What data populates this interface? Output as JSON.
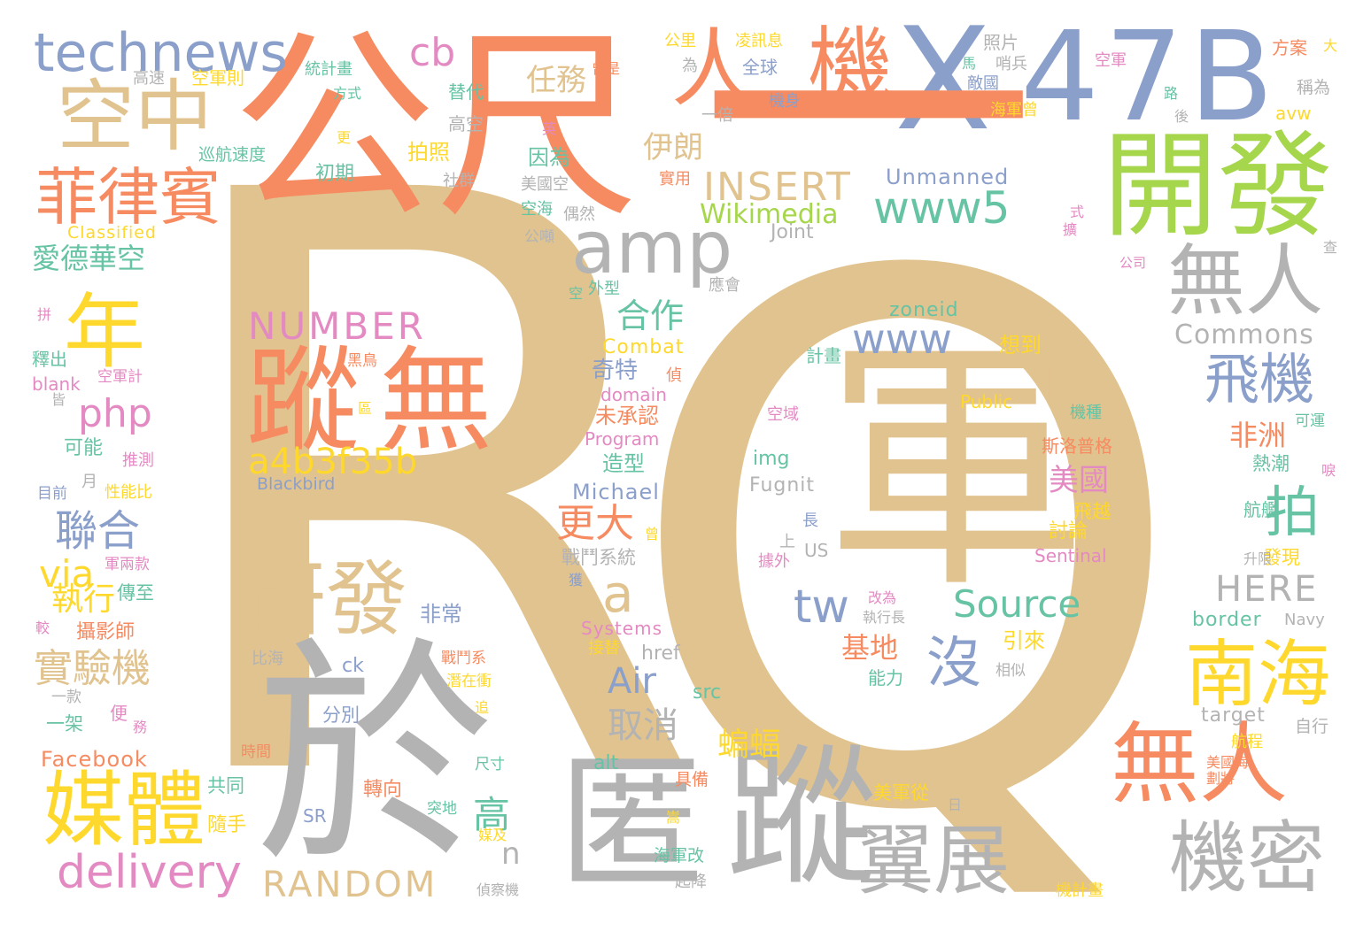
{
  "words": [
    {
      "text": "R",
      "color": "tan",
      "size": 1
    },
    {
      "text": "Q",
      "color": "tan",
      "size": 1
    },
    {
      "text": "軍",
      "color": "tan",
      "size": 1
    },
    {
      "text": "公尺",
      "color": "orange",
      "size": 1
    },
    {
      "text": "X",
      "color": "blue",
      "size": 1
    },
    {
      "text": "47B",
      "color": "blue",
      "size": 1
    },
    {
      "text": "一",
      "color": "orange",
      "size": 1
    },
    {
      "text": "開發",
      "color": "green",
      "size": 1
    },
    {
      "text": "於",
      "color": "gray",
      "size": 1
    },
    {
      "text": "匿",
      "color": "gray",
      "size": 1
    },
    {
      "text": "蹤",
      "color": "gray",
      "size": 1
    },
    {
      "text": "蹤",
      "color": "orange",
      "size": 1
    },
    {
      "text": "無",
      "color": "orange",
      "size": 1
    },
    {
      "text": "機",
      "color": "orange",
      "size": 1
    },
    {
      "text": "人",
      "color": "orange",
      "size": 1
    },
    {
      "text": "amp",
      "color": "gray",
      "size": 1
    },
    {
      "text": "空中",
      "color": "tan",
      "size": 1
    },
    {
      "text": "菲律賓",
      "color": "orange",
      "size": 1
    },
    {
      "text": "technews",
      "color": "blue",
      "size": 1
    },
    {
      "text": "研發",
      "color": "tan",
      "size": 1
    },
    {
      "text": "媒體",
      "color": "yellow",
      "size": 1
    },
    {
      "text": "無人",
      "color": "gray",
      "size": 1
    },
    {
      "text": "無人",
      "color": "orange",
      "size": 1
    },
    {
      "text": "翼展",
      "color": "gray",
      "size": 1
    },
    {
      "text": "機密",
      "color": "gray",
      "size": 1
    },
    {
      "text": "南海",
      "color": "yellow",
      "size": 1
    },
    {
      "text": "飛機",
      "color": "blue",
      "size": 1
    },
    {
      "text": "拍",
      "color": "teal",
      "size": 1
    },
    {
      "text": "年",
      "color": "yellow",
      "size": 1
    },
    {
      "text": "www5",
      "color": "teal",
      "size": 1
    },
    {
      "text": "www",
      "color": "blue",
      "size": 1
    },
    {
      "text": "INSERT",
      "color": "tan",
      "size": 1
    },
    {
      "text": "NUMBER",
      "color": "pink",
      "size": 1
    },
    {
      "text": "a4b3f35b",
      "color": "yellow",
      "size": 1
    },
    {
      "text": "php",
      "color": "pink",
      "size": 1
    },
    {
      "text": "tw",
      "color": "blue",
      "size": 1
    },
    {
      "text": "Source",
      "color": "teal",
      "size": 1
    },
    {
      "text": "沒",
      "color": "blue",
      "size": 1
    },
    {
      "text": "delivery",
      "color": "pink",
      "size": 1
    },
    {
      "text": "RANDOM",
      "color": "tan",
      "size": 1
    },
    {
      "text": "Commons",
      "color": "gray",
      "size": 1
    },
    {
      "text": "HERE",
      "color": "gray",
      "size": 1
    },
    {
      "text": "Wikimedia",
      "color": "green",
      "size": 1
    },
    {
      "text": "Unmanned",
      "color": "blue",
      "size": 1
    },
    {
      "text": "cb",
      "color": "pink",
      "size": 1
    },
    {
      "text": "任務",
      "color": "tan",
      "size": 1
    },
    {
      "text": "伊朗",
      "color": "tan",
      "size": 1
    },
    {
      "text": "合作",
      "color": "teal",
      "size": 1
    },
    {
      "text": "愛德華空",
      "color": "teal",
      "size": 1
    },
    {
      "text": "聯合",
      "color": "blue",
      "size": 1
    },
    {
      "text": "via",
      "color": "yellow",
      "size": 1
    },
    {
      "text": "執行",
      "color": "yellow",
      "size": 1
    },
    {
      "text": "實驗機",
      "color": "tan",
      "size": 1
    },
    {
      "text": "Facebook",
      "color": "orange",
      "size": 1
    },
    {
      "text": "a",
      "color": "tan",
      "size": 1
    },
    {
      "text": "更大",
      "color": "orange",
      "size": 1
    },
    {
      "text": "Air",
      "color": "blue",
      "size": 1
    },
    {
      "text": "取消",
      "color": "gray",
      "size": 1
    },
    {
      "text": "蝙蝠",
      "color": "yellow",
      "size": 1
    },
    {
      "text": "高",
      "color": "teal",
      "size": 1
    },
    {
      "text": "n",
      "color": "gray",
      "size": 1
    },
    {
      "text": "基地",
      "color": "orange",
      "size": 1
    },
    {
      "text": "非洲",
      "color": "orange",
      "size": 1
    },
    {
      "text": "美國",
      "color": "pink",
      "size": 1
    },
    {
      "text": "zoneid",
      "color": "teal",
      "size": 1
    },
    {
      "text": "Combat",
      "color": "yellow",
      "size": 1
    },
    {
      "text": "Michael",
      "color": "blue",
      "size": 1
    },
    {
      "text": "Fugnit",
      "color": "gray",
      "size": 1
    },
    {
      "text": "Blackbird",
      "color": "blue",
      "size": 1
    },
    {
      "text": "Program",
      "color": "pink",
      "size": 1
    },
    {
      "text": "Systems",
      "color": "pink",
      "size": 1
    },
    {
      "text": "Sentinal",
      "color": "pink",
      "size": 1
    },
    {
      "text": "border",
      "color": "teal",
      "size": 1
    },
    {
      "text": "Navy",
      "color": "gray",
      "size": 1
    },
    {
      "text": "target",
      "color": "gray",
      "size": 1
    },
    {
      "text": "Public",
      "color": "yellow",
      "size": 1
    },
    {
      "text": "Joint",
      "color": "gray",
      "size": 1
    },
    {
      "text": "Classified",
      "color": "yellow",
      "size": 1
    },
    {
      "text": "blank",
      "color": "pink",
      "size": 1
    },
    {
      "text": "domain",
      "color": "pink",
      "size": 1
    },
    {
      "text": "img",
      "color": "teal",
      "size": 1
    },
    {
      "text": "href",
      "color": "gray",
      "size": 1
    },
    {
      "text": "src",
      "color": "teal",
      "size": 1
    },
    {
      "text": "ck",
      "color": "blue",
      "size": 1
    },
    {
      "text": "alt",
      "color": "teal",
      "size": 1
    },
    {
      "text": "SR",
      "color": "blue",
      "size": 1
    },
    {
      "text": "US",
      "color": "gray",
      "size": 1
    },
    {
      "text": "avw",
      "color": "yellow",
      "size": 1
    },
    {
      "text": "照片",
      "color": "gray",
      "size": 1
    },
    {
      "text": "空軍則",
      "color": "yellow",
      "size": 1
    },
    {
      "text": "巡航速度",
      "color": "teal",
      "size": 1
    },
    {
      "text": "因為",
      "color": "teal",
      "size": 1
    },
    {
      "text": "拍照",
      "color": "yellow",
      "size": 1
    },
    {
      "text": "初期",
      "color": "teal",
      "size": 1
    },
    {
      "text": "全球",
      "color": "blue",
      "size": 1
    },
    {
      "text": "奇特",
      "color": "blue",
      "size": 1
    },
    {
      "text": "未承認",
      "color": "orange",
      "size": 1
    },
    {
      "text": "造型",
      "color": "teal",
      "size": 1
    },
    {
      "text": "戰鬥系統",
      "color": "gray",
      "size": 1
    },
    {
      "text": "非常",
      "color": "blue",
      "size": 1
    },
    {
      "text": "可能",
      "color": "teal",
      "size": 1
    },
    {
      "text": "攝影師",
      "color": "orange",
      "size": 1
    },
    {
      "text": "傳至",
      "color": "teal",
      "size": 1
    },
    {
      "text": "一架",
      "color": "teal",
      "size": 1
    },
    {
      "text": "共同",
      "color": "teal",
      "size": 1
    },
    {
      "text": "隨手",
      "color": "yellow",
      "size": 1
    },
    {
      "text": "分別",
      "color": "blue",
      "size": 1
    },
    {
      "text": "轉向",
      "color": "orange",
      "size": 1
    },
    {
      "text": "美軍從",
      "color": "yellow",
      "size": 1
    },
    {
      "text": "海軍改",
      "color": "teal",
      "size": 1
    },
    {
      "text": "起降",
      "color": "gray",
      "size": 1
    },
    {
      "text": "具備",
      "color": "orange",
      "size": 1
    },
    {
      "text": "引來",
      "color": "yellow",
      "size": 1
    },
    {
      "text": "能力",
      "color": "teal",
      "size": 1
    },
    {
      "text": "想到",
      "color": "yellow",
      "size": 1
    },
    {
      "text": "討論",
      "color": "yellow",
      "size": 1
    },
    {
      "text": "飛越",
      "color": "yellow",
      "size": 1
    },
    {
      "text": "斯洛普格",
      "color": "orange",
      "size": 1
    },
    {
      "text": "熱潮",
      "color": "teal",
      "size": 1
    },
    {
      "text": "航艦",
      "color": "teal",
      "size": 1
    },
    {
      "text": "發現",
      "color": "yellow",
      "size": 1
    },
    {
      "text": "升限",
      "color": "gray",
      "size": 1
    },
    {
      "text": "自行",
      "color": "gray",
      "size": 1
    },
    {
      "text": "航程",
      "color": "yellow",
      "size": 1
    },
    {
      "text": "機計畫",
      "color": "yellow",
      "size": 1
    },
    {
      "text": "替代",
      "color": "teal",
      "size": 1
    },
    {
      "text": "高空",
      "color": "gray",
      "size": 1
    },
    {
      "text": "社群",
      "color": "gray",
      "size": 1
    },
    {
      "text": "實用",
      "color": "orange",
      "size": 1
    },
    {
      "text": "方案",
      "color": "orange",
      "size": 1
    },
    {
      "text": "稱為",
      "color": "gray",
      "size": 1
    },
    {
      "text": "海軍曾",
      "color": "yellow",
      "size": 1
    },
    {
      "text": "機身",
      "color": "blue",
      "size": 1
    },
    {
      "text": "一倍",
      "color": "gray",
      "size": 1
    },
    {
      "text": "高速",
      "color": "gray",
      "size": 1
    },
    {
      "text": "統計畫",
      "color": "teal",
      "size": 1
    },
    {
      "text": "方式",
      "color": "teal",
      "size": 1
    },
    {
      "text": "公里",
      "color": "yellow",
      "size": 1
    },
    {
      "text": "為",
      "color": "gray",
      "size": 1
    },
    {
      "text": "曾是",
      "color": "orange",
      "size": 1
    },
    {
      "text": "凌訊息",
      "color": "yellow",
      "size": 1
    },
    {
      "text": "美國空",
      "color": "gray",
      "size": 1
    },
    {
      "text": "偶然",
      "color": "gray",
      "size": 1
    },
    {
      "text": "空海",
      "color": "teal",
      "size": 1
    },
    {
      "text": "公噸",
      "color": "gray",
      "size": 1
    },
    {
      "text": "外型",
      "color": "teal",
      "size": 1
    },
    {
      "text": "應會",
      "color": "gray",
      "size": 1
    },
    {
      "text": "空軍計",
      "color": "pink",
      "size": 1
    },
    {
      "text": "黑鳥",
      "color": "orange",
      "size": 1
    },
    {
      "text": "計畫",
      "color": "teal",
      "size": 1
    },
    {
      "text": "空域",
      "color": "pink",
      "size": 1
    },
    {
      "text": "機種",
      "color": "teal",
      "size": 1
    },
    {
      "text": "可運",
      "color": "teal",
      "size": 1
    },
    {
      "text": "釋出",
      "color": "teal",
      "size": 1
    },
    {
      "text": "推測",
      "color": "pink",
      "size": 1
    },
    {
      "text": "目前",
      "color": "blue",
      "size": 1
    },
    {
      "text": "性能比",
      "color": "yellow",
      "size": 1
    },
    {
      "text": "月",
      "color": "gray",
      "size": 1
    },
    {
      "text": "軍兩款",
      "color": "pink",
      "size": 1
    },
    {
      "text": "比海",
      "color": "gray",
      "size": 1
    },
    {
      "text": "一款",
      "color": "gray",
      "size": 1
    },
    {
      "text": "便",
      "color": "pink",
      "size": 1
    },
    {
      "text": "時間",
      "color": "orange",
      "size": 1
    },
    {
      "text": "戰鬥系",
      "color": "orange",
      "size": 1
    },
    {
      "text": "潛在衝",
      "color": "yellow",
      "size": 1
    },
    {
      "text": "接替",
      "color": "yellow",
      "size": 1
    },
    {
      "text": "尺寸",
      "color": "teal",
      "size": 1
    },
    {
      "text": "突地",
      "color": "teal",
      "size": 1
    },
    {
      "text": "執行長",
      "color": "gray",
      "size": 1
    },
    {
      "text": "改為",
      "color": "pink",
      "size": 1
    },
    {
      "text": "相似",
      "color": "gray",
      "size": 1
    },
    {
      "text": "偵察機",
      "color": "gray",
      "size": 1
    },
    {
      "text": "美國海",
      "color": "orange",
      "size": 1
    },
    {
      "text": "據外",
      "color": "pink",
      "size": 1
    },
    {
      "text": "公司",
      "color": "pink",
      "size": 1
    },
    {
      "text": "空軍",
      "color": "pink",
      "size": 1
    },
    {
      "text": "敵國",
      "color": "blue",
      "size": 1
    },
    {
      "text": "哨兵",
      "color": "gray",
      "size": 1
    },
    {
      "text": "上",
      "color": "gray",
      "size": 1
    },
    {
      "text": "長",
      "color": "blue",
      "size": 1
    },
    {
      "text": "曾",
      "color": "yellow",
      "size": 1
    },
    {
      "text": "偵",
      "color": "orange",
      "size": 1
    },
    {
      "text": "更",
      "color": "yellow",
      "size": 1
    },
    {
      "text": "英",
      "color": "pink",
      "size": 1
    },
    {
      "text": "擴",
      "color": "pink",
      "size": 1
    },
    {
      "text": "式",
      "color": "pink",
      "size": 1
    },
    {
      "text": "後",
      "color": "gray",
      "size": 1
    },
    {
      "text": "馬",
      "color": "teal",
      "size": 1
    },
    {
      "text": "查",
      "color": "gray",
      "size": 1
    },
    {
      "text": "大",
      "color": "yellow",
      "size": 1
    },
    {
      "text": "空",
      "color": "teal",
      "size": 1
    },
    {
      "text": "拼",
      "color": "pink",
      "size": 1
    },
    {
      "text": "皆",
      "color": "gray",
      "size": 1
    },
    {
      "text": "較",
      "color": "pink",
      "size": 1
    },
    {
      "text": "務",
      "color": "pink",
      "size": 1
    },
    {
      "text": "追",
      "color": "yellow",
      "size": 1
    },
    {
      "text": "媒及",
      "color": "yellow",
      "size": 1
    },
    {
      "text": "嵩",
      "color": "yellow",
      "size": 1
    },
    {
      "text": "獲",
      "color": "blue",
      "size": 1
    },
    {
      "text": "日",
      "color": "gray",
      "size": 1
    },
    {
      "text": "劃將",
      "color": "orange",
      "size": 1
    },
    {
      "text": "區",
      "color": "yellow",
      "size": 1
    },
    {
      "text": "唳",
      "color": "pink",
      "size": 1
    },
    {
      "text": "路",
      "color": "teal",
      "size": 1
    }
  ]
}
